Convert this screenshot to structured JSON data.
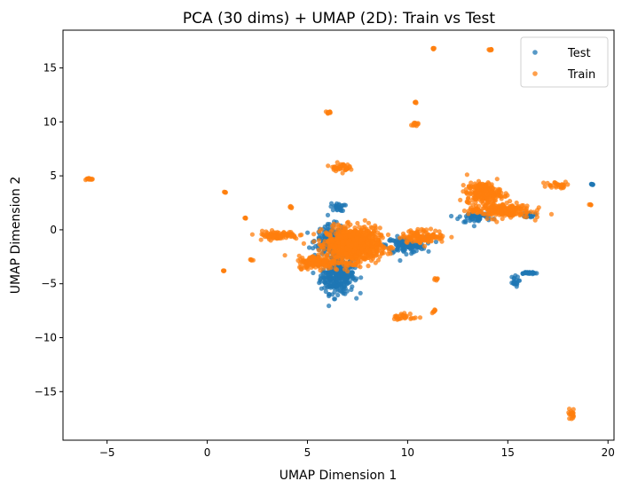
{
  "chart_data": {
    "type": "scatter",
    "title": "PCA (30 dims) + UMAP (2D): Train vs Test",
    "xlabel": "UMAP Dimension 1",
    "ylabel": "UMAP Dimension 2",
    "xlim": [
      -7.2,
      20.3
    ],
    "ylim": [
      -19.5,
      18.5
    ],
    "xticks": [
      -5,
      0,
      5,
      10,
      15,
      20
    ],
    "yticks": [
      -15,
      -10,
      -5,
      0,
      5,
      10,
      15
    ],
    "xtick_labels": [
      "−5",
      "0",
      "5",
      "10",
      "15",
      "20"
    ],
    "ytick_labels": [
      "−15",
      "−10",
      "−5",
      "0",
      "5",
      "10",
      "15"
    ],
    "grid": false,
    "legend": "top-right",
    "series": [
      {
        "name": "Test",
        "color": "#1f77b4",
        "clusters": [
          {
            "center": [
              6.5,
              -4.2
            ],
            "spread": [
              0.7,
              1.4
            ],
            "n": 320
          },
          {
            "center": [
              6.2,
              -1.0
            ],
            "spread": [
              0.7,
              1.2
            ],
            "n": 180
          },
          {
            "center": [
              9.9,
              -1.4
            ],
            "spread": [
              0.8,
              0.6
            ],
            "n": 140
          },
          {
            "center": [
              13.4,
              1.2
            ],
            "spread": [
              0.7,
              0.5
            ],
            "n": 60
          },
          {
            "center": [
              16.1,
              1.4
            ],
            "spread": [
              0.2,
              0.2
            ],
            "n": 25
          },
          {
            "center": [
              16.0,
              -4.0
            ],
            "spread": [
              0.4,
              0.1
            ],
            "n": 25
          },
          {
            "center": [
              15.3,
              -4.8
            ],
            "spread": [
              0.2,
              0.4
            ],
            "n": 20
          },
          {
            "center": [
              19.2,
              4.2
            ],
            "spread": [
              0.05,
              0.05
            ],
            "n": 8
          },
          {
            "center": [
              6.5,
              2.1
            ],
            "spread": [
              0.3,
              0.3
            ],
            "n": 25
          }
        ]
      },
      {
        "name": "Train",
        "color": "#ff7f0e",
        "clusters": [
          {
            "center": [
              7.3,
              -1.4
            ],
            "spread": [
              1.1,
              1.3
            ],
            "n": 900
          },
          {
            "center": [
              5.5,
              -3.0
            ],
            "spread": [
              0.8,
              0.5
            ],
            "n": 160
          },
          {
            "center": [
              3.5,
              -0.5
            ],
            "spread": [
              0.9,
              0.3
            ],
            "n": 90
          },
          {
            "center": [
              13.8,
              3.4
            ],
            "spread": [
              0.7,
              0.8
            ],
            "n": 220
          },
          {
            "center": [
              14.6,
              1.8
            ],
            "spread": [
              1.3,
              0.6
            ],
            "n": 200
          },
          {
            "center": [
              10.8,
              -0.6
            ],
            "spread": [
              0.9,
              0.5
            ],
            "n": 120
          },
          {
            "center": [
              17.5,
              4.1
            ],
            "spread": [
              0.6,
              0.3
            ],
            "n": 30
          },
          {
            "center": [
              6.6,
              5.8
            ],
            "spread": [
              0.4,
              0.3
            ],
            "n": 40
          },
          {
            "center": [
              6.1,
              10.9
            ],
            "spread": [
              0.1,
              0.1
            ],
            "n": 12
          },
          {
            "center": [
              10.3,
              9.8
            ],
            "spread": [
              0.15,
              0.15
            ],
            "n": 12
          },
          {
            "center": [
              10.4,
              11.8
            ],
            "spread": [
              0.05,
              0.05
            ],
            "n": 6
          },
          {
            "center": [
              11.3,
              16.8
            ],
            "spread": [
              0.05,
              0.05
            ],
            "n": 6
          },
          {
            "center": [
              14.1,
              16.7
            ],
            "spread": [
              0.08,
              0.05
            ],
            "n": 8
          },
          {
            "center": [
              -5.9,
              4.7
            ],
            "spread": [
              0.2,
              0.1
            ],
            "n": 14
          },
          {
            "center": [
              0.9,
              3.5
            ],
            "spread": [
              0.04,
              0.05
            ],
            "n": 5
          },
          {
            "center": [
              1.9,
              1.1
            ],
            "spread": [
              0.04,
              0.05
            ],
            "n": 5
          },
          {
            "center": [
              0.8,
              -3.8
            ],
            "spread": [
              0.05,
              0.05
            ],
            "n": 5
          },
          {
            "center": [
              2.2,
              -2.8
            ],
            "spread": [
              0.06,
              0.05
            ],
            "n": 5
          },
          {
            "center": [
              9.9,
              -8.1
            ],
            "spread": [
              0.5,
              0.3
            ],
            "n": 28
          },
          {
            "center": [
              11.3,
              -7.5
            ],
            "spread": [
              0.1,
              0.15
            ],
            "n": 8
          },
          {
            "center": [
              11.4,
              -4.5
            ],
            "spread": [
              0.1,
              0.1
            ],
            "n": 6
          },
          {
            "center": [
              18.2,
              -17.1
            ],
            "spread": [
              0.15,
              0.4
            ],
            "n": 20
          },
          {
            "center": [
              19.1,
              2.3
            ],
            "spread": [
              0.05,
              0.05
            ],
            "n": 5
          },
          {
            "center": [
              4.2,
              2.1
            ],
            "spread": [
              0.1,
              0.1
            ],
            "n": 5
          }
        ]
      }
    ]
  }
}
